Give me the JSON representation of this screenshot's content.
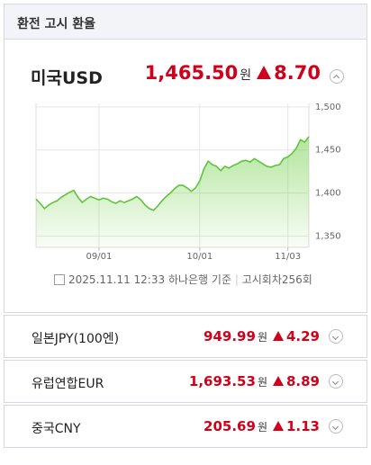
{
  "header": {
    "title": "환전 고시 환율"
  },
  "main": {
    "currency": "미국USD",
    "rate": "1,465.50",
    "unit": "원",
    "change": "8.70",
    "footer": {
      "datetime": "2025.11.11 12:33",
      "source": "하나은행 기준",
      "round": "고시회차256회"
    }
  },
  "chart_data": {
    "type": "area",
    "color": "#5fc43a",
    "grid": true,
    "categories": [
      null,
      null,
      null,
      null,
      null,
      null,
      null,
      null,
      null,
      null,
      null,
      null,
      null,
      null,
      null,
      "09/01",
      null,
      null,
      null,
      null,
      null,
      null,
      null,
      null,
      null,
      null,
      null,
      null,
      null,
      null,
      null,
      null,
      null,
      null,
      null,
      null,
      null,
      null,
      null,
      "10/01",
      null,
      null,
      null,
      null,
      null,
      null,
      null,
      null,
      null,
      null,
      null,
      null,
      null,
      null,
      null,
      null,
      null,
      null,
      null,
      null,
      "11/03",
      null,
      null,
      null,
      null,
      null
    ],
    "values": [
      1393,
      1388,
      1382,
      1386,
      1389,
      1391,
      1395,
      1398,
      1401,
      1403,
      1395,
      1389,
      1393,
      1396,
      1394,
      1392,
      1394,
      1393,
      1390,
      1388,
      1391,
      1389,
      1391,
      1393,
      1396,
      1392,
      1386,
      1382,
      1380,
      1385,
      1391,
      1396,
      1400,
      1405,
      1409,
      1409,
      1406,
      1402,
      1406,
      1414,
      1428,
      1437,
      1433,
      1431,
      1426,
      1431,
      1429,
      1432,
      1434,
      1437,
      1438,
      1436,
      1440,
      1437,
      1434,
      1431,
      1430,
      1432,
      1433,
      1440,
      1442,
      1446,
      1452,
      1462,
      1459,
      1465.5
    ],
    "ylim": [
      1337,
      1504
    ],
    "yticks": [
      {
        "value": 1350,
        "label": "1,350"
      },
      {
        "value": 1400,
        "label": "1,400"
      },
      {
        "value": 1450,
        "label": "1,450"
      },
      {
        "value": 1500,
        "label": "1,500"
      }
    ]
  },
  "rows": [
    {
      "currency": "일본JPY(100엔)",
      "rate": "949.99",
      "unit": "원",
      "change": "4.29"
    },
    {
      "currency": "유럽연합EUR",
      "rate": "1,693.53",
      "unit": "원",
      "change": "8.89"
    },
    {
      "currency": "중국CNY",
      "rate": "205.69",
      "unit": "원",
      "change": "1.13"
    }
  ]
}
